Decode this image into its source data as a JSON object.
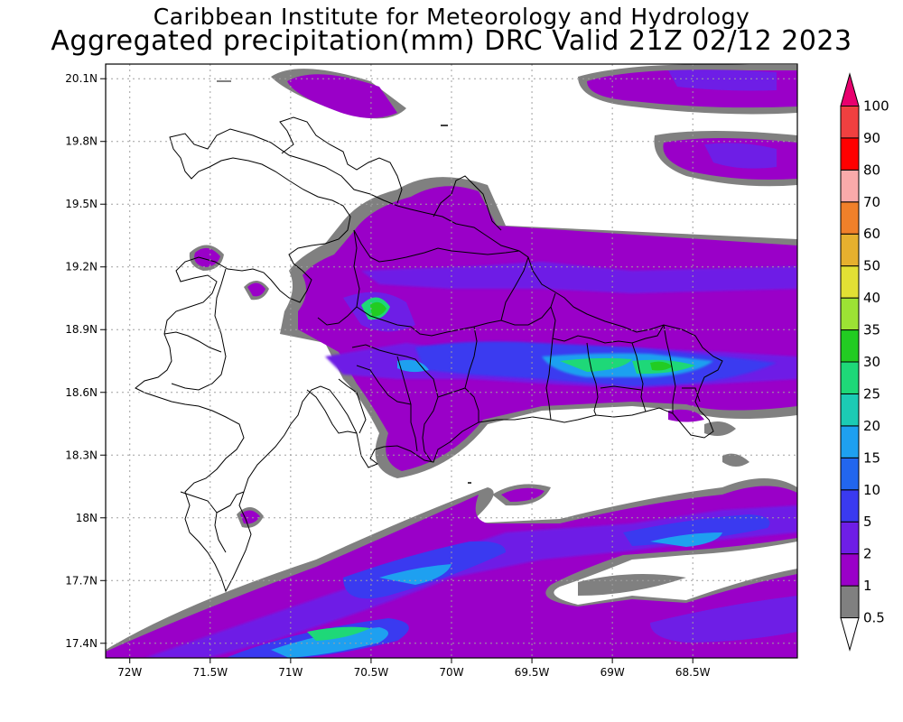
{
  "header": {
    "institute": "Caribbean Institute for Meteorology and Hydrology",
    "product": "Aggregated precipitation(mm) DRC Valid 21Z 02/12 2023"
  },
  "map": {
    "lon_range": [
      -72.15,
      -67.85
    ],
    "lat_range": [
      17.33,
      20.17
    ],
    "lon_ticks": [
      {
        "value": -72.0,
        "label": "72W"
      },
      {
        "value": -71.5,
        "label": "71.5W"
      },
      {
        "value": -71.0,
        "label": "71W"
      },
      {
        "value": -70.5,
        "label": "70.5W"
      },
      {
        "value": -70.0,
        "label": "70W"
      },
      {
        "value": -69.5,
        "label": "69.5W"
      },
      {
        "value": -69.0,
        "label": "69W"
      },
      {
        "value": -68.5,
        "label": "68.5W"
      }
    ],
    "lat_ticks": [
      {
        "value": 20.1,
        "label": "20.1N"
      },
      {
        "value": 19.8,
        "label": "19.8N"
      },
      {
        "value": 19.5,
        "label": "19.5N"
      },
      {
        "value": 19.2,
        "label": "19.2N"
      },
      {
        "value": 18.9,
        "label": "18.9N"
      },
      {
        "value": 18.6,
        "label": "18.6N"
      },
      {
        "value": 18.3,
        "label": "18.3N"
      },
      {
        "value": 18.0,
        "label": "18N"
      },
      {
        "value": 17.7,
        "label": "17.7N"
      },
      {
        "value": 17.4,
        "label": "17.4N"
      }
    ],
    "grid": true,
    "country": "Dominican Republic",
    "legend_position": "right"
  },
  "legend": {
    "bins": [
      {
        "label": "0.5",
        "color": "#ffffff"
      },
      {
        "label": "1",
        "color": "#808080"
      },
      {
        "label": "2",
        "color": "#9a00c8"
      },
      {
        "label": "5",
        "color": "#6e1ee6"
      },
      {
        "label": "10",
        "color": "#3a3af0"
      },
      {
        "label": "15",
        "color": "#2266ee"
      },
      {
        "label": "20",
        "color": "#1ea0f0"
      },
      {
        "label": "25",
        "color": "#1ccbb4"
      },
      {
        "label": "30",
        "color": "#1ed878"
      },
      {
        "label": "35",
        "color": "#22cc22"
      },
      {
        "label": "40",
        "color": "#9ce234"
      },
      {
        "label": "50",
        "color": "#e2e034"
      },
      {
        "label": "60",
        "color": "#e6b02e"
      },
      {
        "label": "70",
        "color": "#f0802a"
      },
      {
        "label": "80",
        "color": "#faaaaa"
      },
      {
        "label": "90",
        "color": "#ff0000"
      },
      {
        "label": "100",
        "color": "#f04040"
      },
      {
        "label": "",
        "color": "#e8006e"
      }
    ]
  }
}
